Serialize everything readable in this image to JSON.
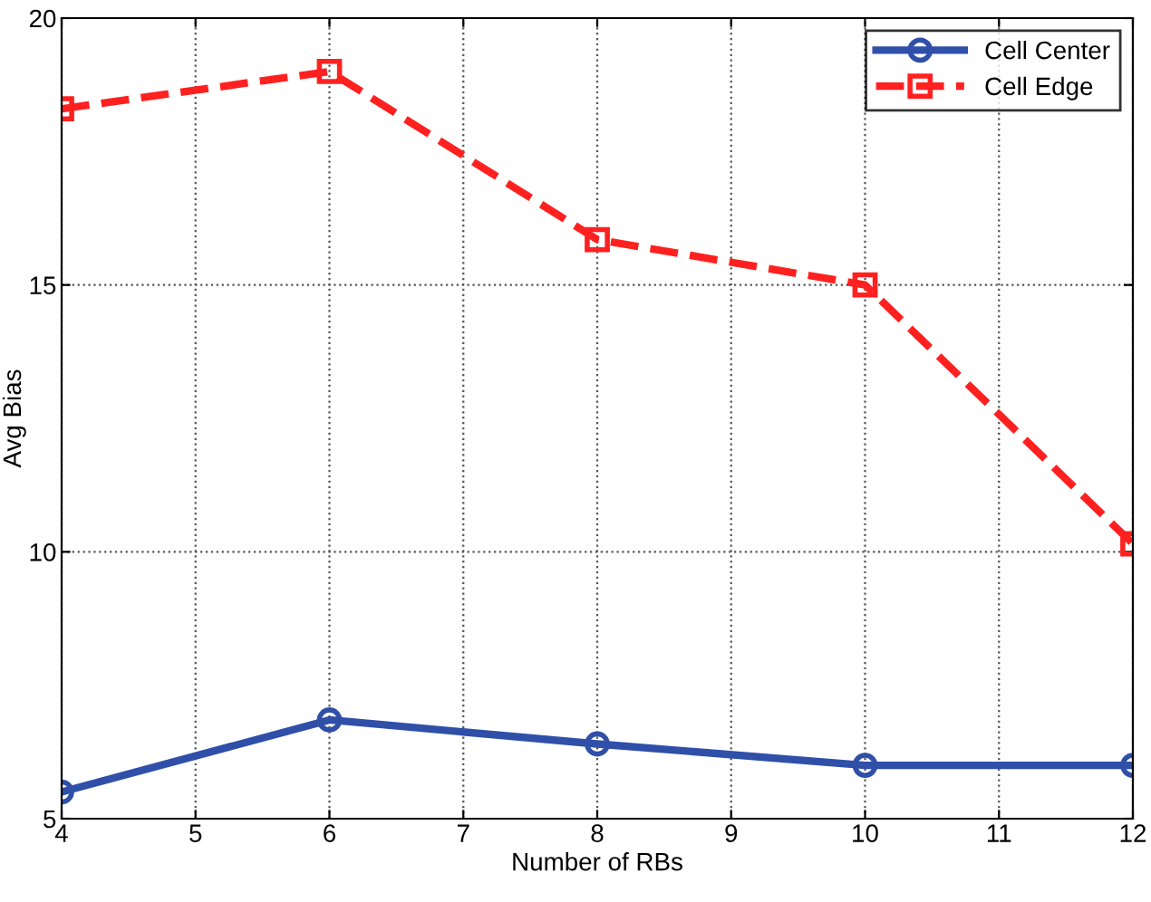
{
  "chart_data": {
    "type": "line",
    "xlabel": "Number of RBs",
    "ylabel": "Avg Bias",
    "x": [
      4,
      6,
      8,
      10,
      12
    ],
    "series": [
      {
        "name": "Cell Center",
        "color": "#2f4fa8",
        "values": [
          5.5,
          6.85,
          6.4,
          6.0,
          6.0
        ],
        "marker": "circle",
        "line_style": "solid"
      },
      {
        "name": "Cell Edge",
        "color": "#ff2020",
        "values": [
          18.3,
          19.0,
          15.85,
          15.0,
          10.15
        ],
        "marker": "square",
        "line_style": "dashed"
      }
    ],
    "xlim": [
      4,
      12
    ],
    "xticks": [
      4,
      5,
      6,
      7,
      8,
      9,
      10,
      11,
      12
    ],
    "ylim": [
      5,
      20
    ],
    "yticks": [
      5,
      10,
      15,
      20
    ],
    "grid": true,
    "legend": "top right"
  }
}
